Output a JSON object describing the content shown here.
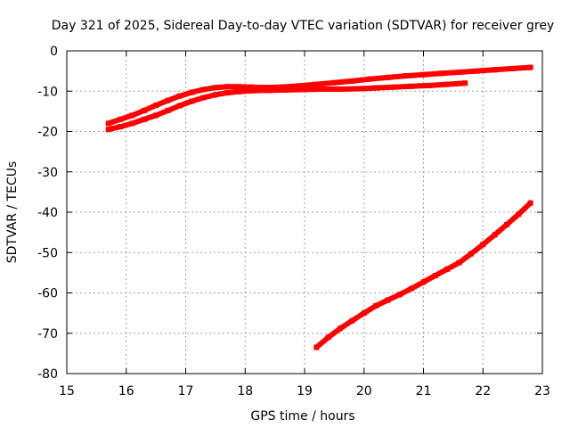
{
  "chart_data": {
    "type": "line",
    "title": "Day 321 of 2025, Sidereal Day-to-day VTEC variation (SDTVAR) for receiver grey",
    "xlabel": "GPS time / hours",
    "ylabel": "SDTVAR / TECUs",
    "xlim": [
      15,
      23
    ],
    "ylim": [
      -80,
      0
    ],
    "x_ticks": [
      15,
      16,
      17,
      18,
      19,
      20,
      21,
      22,
      23
    ],
    "y_ticks": [
      0,
      -10,
      -20,
      -30,
      -40,
      -50,
      -60,
      -70,
      -80
    ],
    "x_tick_labels": [
      "15",
      "16",
      "17",
      "18",
      "19",
      "20",
      "21",
      "22",
      "23"
    ],
    "y_tick_labels": [
      "0",
      "-10",
      "-20",
      "-30",
      "-40",
      "-50",
      "-60",
      "-70",
      "-80"
    ],
    "grid": true,
    "legend": "none",
    "series_color": "#ff0000",
    "series": [
      {
        "x": [
          15.7,
          15.9,
          16.1,
          16.3,
          16.5,
          16.7,
          16.9,
          17.1,
          17.3,
          17.5,
          17.7,
          17.9,
          18.1,
          18.3,
          18.6,
          18.9,
          19.2,
          19.5,
          19.8,
          20.1,
          20.4,
          20.7,
          21.0,
          21.3,
          21.6,
          21.9,
          22.2,
          22.5,
          22.8
        ],
        "y": [
          -18.0,
          -17.0,
          -16.0,
          -14.8,
          -13.5,
          -12.3,
          -11.2,
          -10.3,
          -9.6,
          -9.1,
          -8.9,
          -8.9,
          -9.0,
          -9.1,
          -9.0,
          -8.7,
          -8.3,
          -7.9,
          -7.5,
          -7.0,
          -6.6,
          -6.2,
          -5.9,
          -5.6,
          -5.3,
          -5.0,
          -4.7,
          -4.4,
          -4.1
        ]
      },
      {
        "x": [
          15.7,
          15.9,
          16.1,
          16.3,
          16.5,
          16.7,
          16.9,
          17.1,
          17.3,
          17.5,
          17.7,
          17.9,
          18.1,
          18.4,
          18.7,
          19.0,
          19.3,
          19.6,
          19.9,
          20.2,
          20.5,
          20.8,
          21.1,
          21.4,
          21.7
        ],
        "y": [
          -19.5,
          -18.8,
          -18.0,
          -17.0,
          -16.0,
          -14.8,
          -13.6,
          -12.5,
          -11.6,
          -10.9,
          -10.4,
          -10.1,
          -9.9,
          -9.8,
          -9.7,
          -9.6,
          -9.5,
          -9.5,
          -9.4,
          -9.2,
          -9.0,
          -8.8,
          -8.6,
          -8.3,
          -8.0
        ]
      },
      {
        "x": [
          19.2,
          19.4,
          19.6,
          19.8,
          20.0,
          20.2,
          20.4,
          20.6,
          20.8,
          21.0,
          21.2,
          21.4,
          21.6,
          21.8,
          22.0,
          22.2,
          22.4,
          22.6,
          22.8
        ],
        "y": [
          -73.5,
          -71.0,
          -68.8,
          -66.9,
          -65.0,
          -63.2,
          -61.8,
          -60.4,
          -58.9,
          -57.3,
          -55.7,
          -54.1,
          -52.5,
          -50.3,
          -48.0,
          -45.6,
          -43.1,
          -40.5,
          -37.7
        ]
      }
    ]
  }
}
